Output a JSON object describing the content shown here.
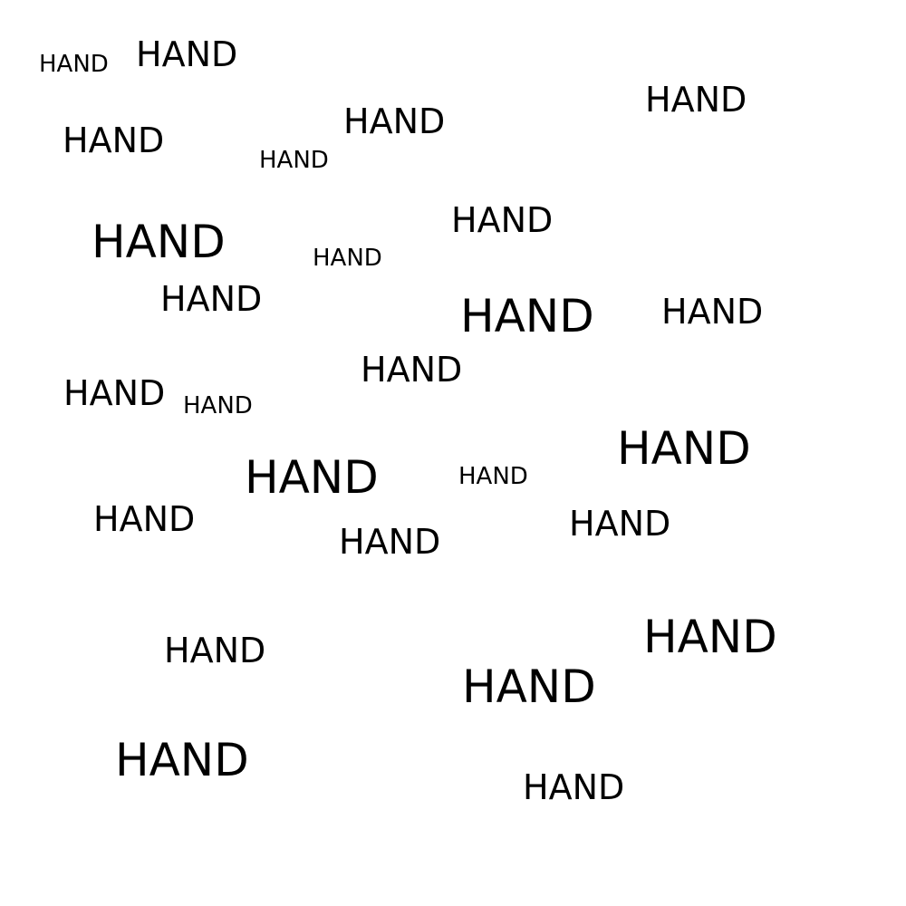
{
  "words": [
    {
      "text": "HAND",
      "size": "small"
    },
    {
      "text": "HAND",
      "size": "medium"
    },
    {
      "text": "HAND",
      "size": "medium"
    },
    {
      "text": "HAND",
      "size": "small"
    },
    {
      "text": "HAND",
      "size": "medium"
    },
    {
      "text": "HAND",
      "size": "medium"
    },
    {
      "text": "HAND",
      "size": "large"
    },
    {
      "text": "HAND",
      "size": "small"
    },
    {
      "text": "HAND",
      "size": "medium"
    },
    {
      "text": "HAND",
      "size": "medium"
    },
    {
      "text": "HAND",
      "size": "large"
    },
    {
      "text": "HAND",
      "size": "medium"
    },
    {
      "text": "HAND",
      "size": "medium"
    },
    {
      "text": "HAND",
      "size": "medium"
    },
    {
      "text": "HAND",
      "size": "small"
    },
    {
      "text": "HAND",
      "size": "large"
    },
    {
      "text": "HAND",
      "size": "small"
    },
    {
      "text": "HAND",
      "size": "large"
    },
    {
      "text": "HAND",
      "size": "medium"
    },
    {
      "text": "HAND",
      "size": "medium"
    },
    {
      "text": "HAND",
      "size": "medium"
    },
    {
      "text": "HAND",
      "size": "medium"
    },
    {
      "text": "HAND",
      "size": "large"
    },
    {
      "text": "HAND",
      "size": "large"
    },
    {
      "text": "HAND",
      "size": "large"
    },
    {
      "text": "HAND",
      "size": "medium"
    }
  ],
  "colors": {
    "background": "#ffffff",
    "text": "#000000"
  }
}
